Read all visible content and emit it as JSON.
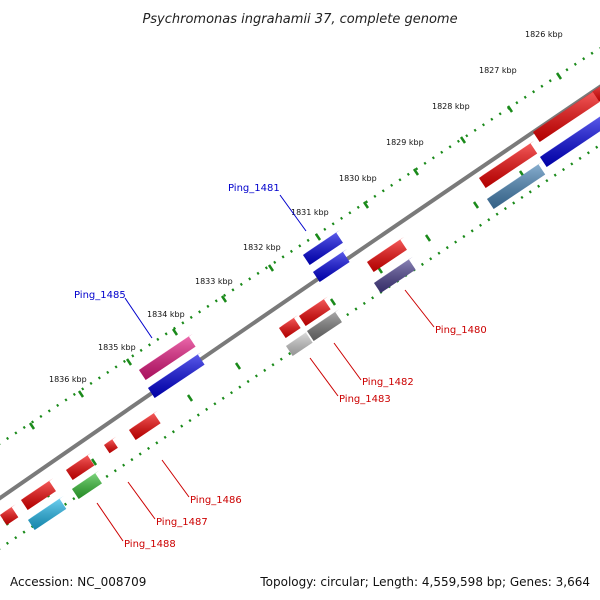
{
  "title": "Psychromonas ingrahamii 37, complete genome",
  "ticks": [
    "1826 kbp",
    "1827 kbp",
    "1828 kbp",
    "1829 kbp",
    "1830 kbp",
    "1831 kbp",
    "1832 kbp",
    "1833 kbp",
    "1834 kbp",
    "1835 kbp",
    "1836 kbp"
  ],
  "gene_labels": [
    {
      "text": "Ping_1481",
      "color": "#0000cc"
    },
    {
      "text": "Ping_1485",
      "color": "#0000cc"
    },
    {
      "text": "Ping_1480",
      "color": "#cc0000"
    },
    {
      "text": "Ping_1482",
      "color": "#cc0000"
    },
    {
      "text": "Ping_1483",
      "color": "#cc0000"
    },
    {
      "text": "Ping_1486",
      "color": "#cc0000"
    },
    {
      "text": "Ping_1487",
      "color": "#cc0000"
    },
    {
      "text": "Ping_1488",
      "color": "#cc0000"
    }
  ],
  "footer": {
    "accession": "Accession: NC_008709",
    "stats": "Topology: circular; Length: 4,559,598 bp; Genes: 3,664"
  },
  "colors": {
    "backbone": "#7a7a7a",
    "tick_dots": "#1a8a1a",
    "gene_red": "#ee0000",
    "gene_blue": "#0000dd",
    "gene_steel": "#4682b4",
    "gene_slate": "#483d8b",
    "gene_magenta": "#e2177e",
    "gene_gray": "#777777",
    "gene_lightgray": "#c8c8c8",
    "gene_cyan": "#1eb4e6",
    "gene_green": "#33bb33"
  }
}
